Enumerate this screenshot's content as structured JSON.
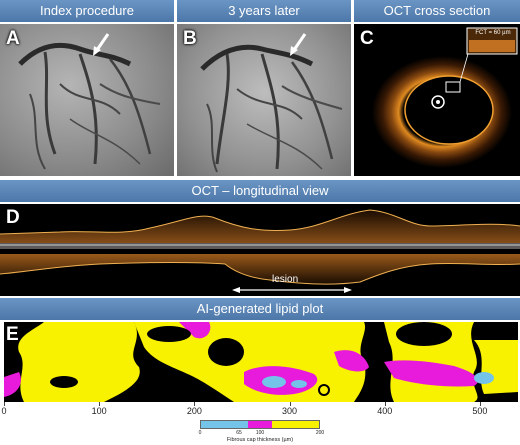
{
  "panels": {
    "a": {
      "header": "Index procedure",
      "letter": "A"
    },
    "b": {
      "header": "3 years later",
      "letter": "B"
    },
    "c": {
      "header": "OCT cross section",
      "letter": "C",
      "fct": "FCT = 60 µm"
    },
    "d": {
      "header": "OCT – longitudinal view",
      "letter": "D",
      "lesion": "lesion"
    },
    "e": {
      "header": "AI-generated lipid plot",
      "letter": "E"
    }
  },
  "x_axis": {
    "ticks": [
      "0",
      "100",
      "200",
      "300",
      "400",
      "500"
    ],
    "min": 0,
    "max": 540
  },
  "colorbar": {
    "label": "Fibrous cap thickness (µm)",
    "ticks": [
      "0",
      "65",
      "100",
      "200"
    ],
    "colors": [
      "#74c4ea",
      "#e81bdc",
      "#f8f200"
    ]
  }
}
